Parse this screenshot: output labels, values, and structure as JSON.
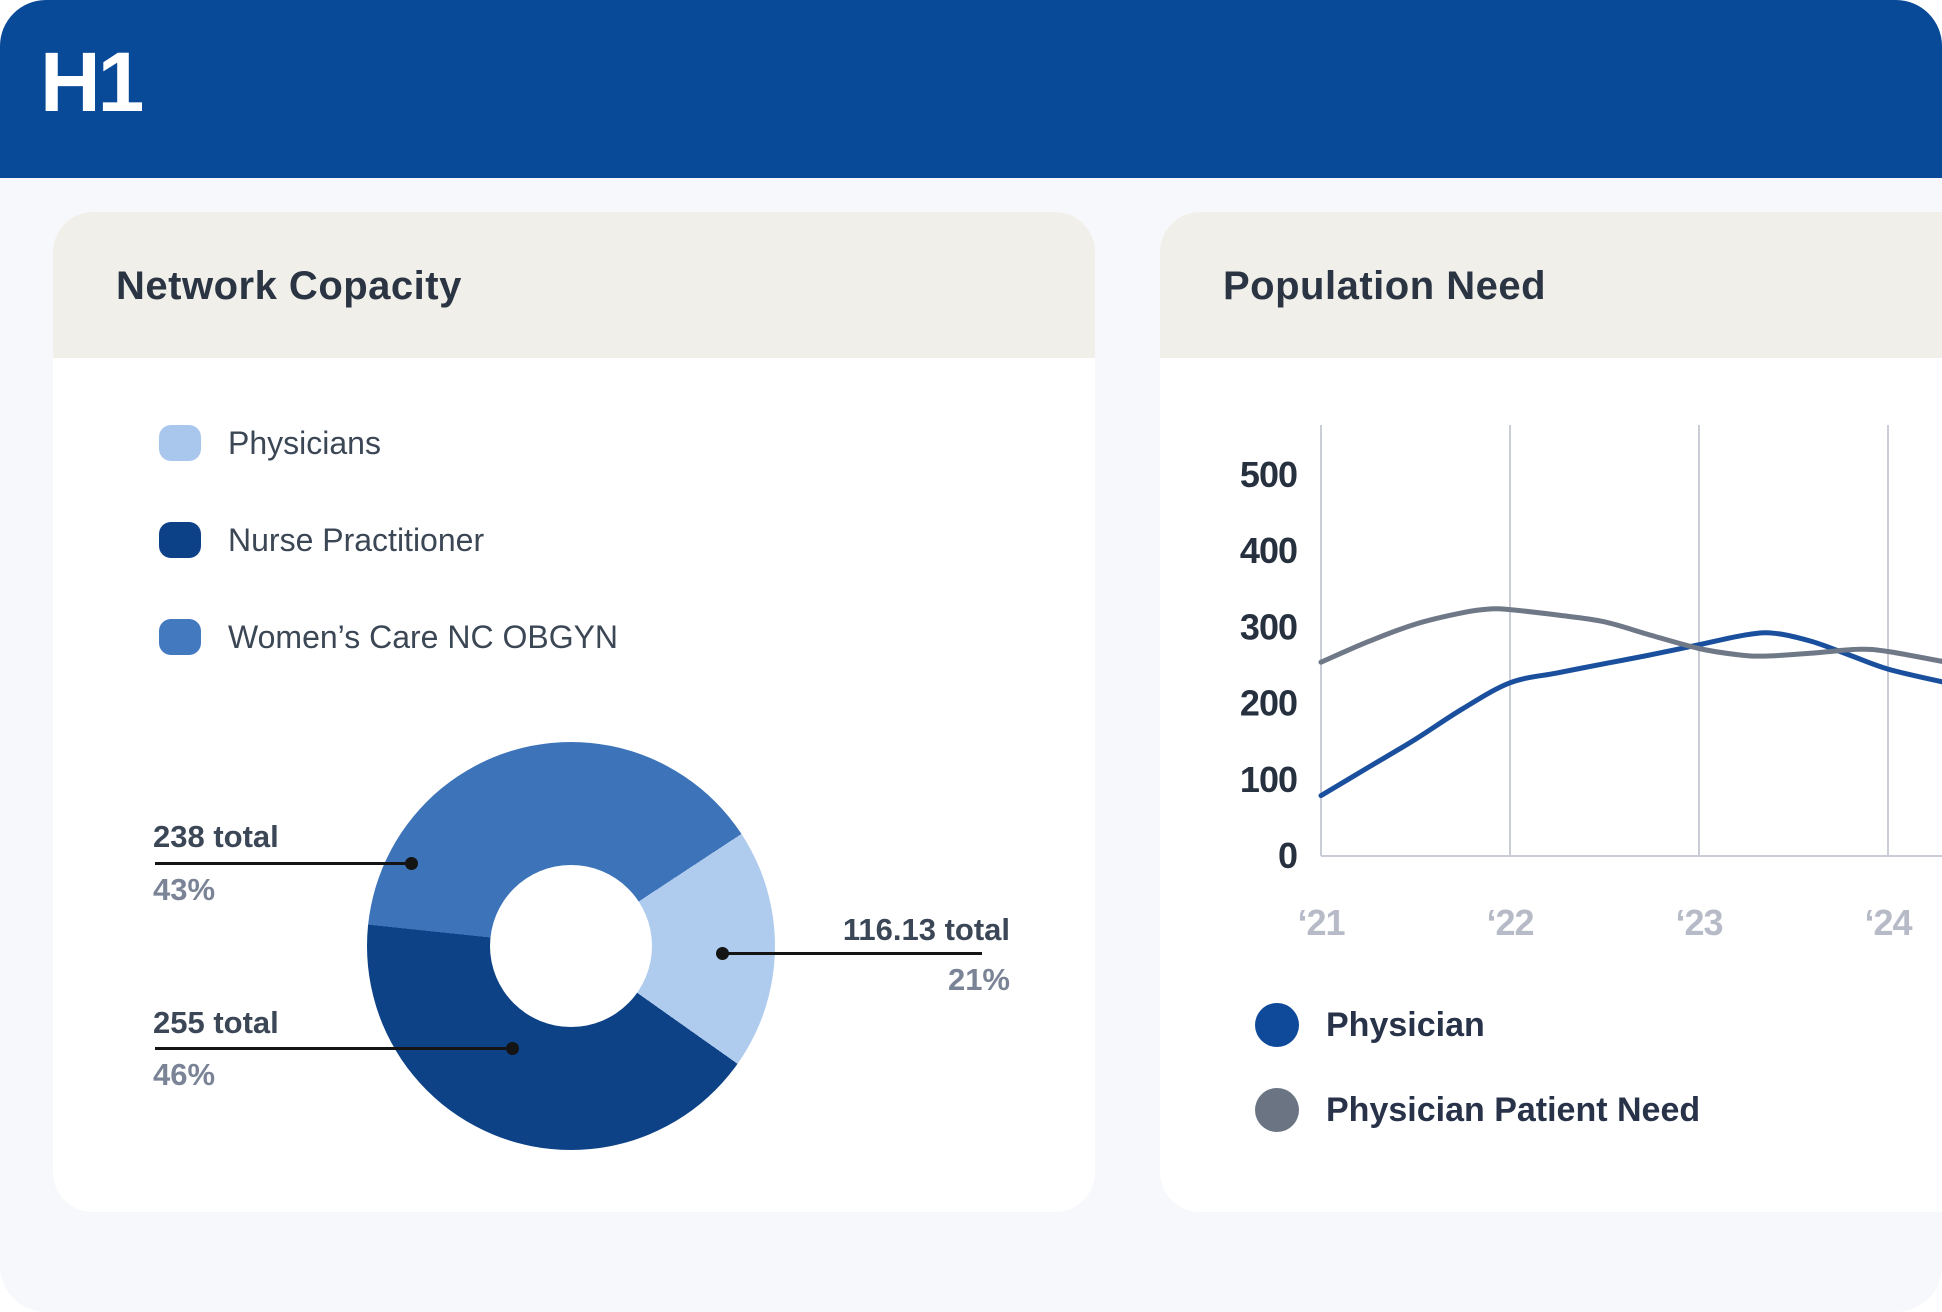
{
  "header": {
    "logo": "H1",
    "bar_color": "#084A98"
  },
  "network_card": {
    "title": "Network Copacity",
    "legend": [
      {
        "label": "Physicians",
        "color": "#A9C7EC"
      },
      {
        "label": "Nurse Practitioner",
        "color": "#0C4087"
      },
      {
        "label": "Women’s Care NC OBGYN",
        "color": "#4379BE"
      }
    ],
    "callouts": [
      {
        "total_label": "238 total",
        "percent_label": "43%"
      },
      {
        "total_label": "255 total",
        "percent_label": "46%"
      },
      {
        "total_label": "116.13 total",
        "percent_label": "21%"
      }
    ]
  },
  "population_card": {
    "title": "Population Need",
    "legend": [
      {
        "label": "Physician",
        "color": "#0E4A99"
      },
      {
        "label": "Physician Patient Need",
        "color": "#6B7483"
      }
    ]
  },
  "chart_data": [
    {
      "type": "pie",
      "title": "Network Copacity",
      "donut": true,
      "start_angle_deg": 276,
      "segments": [
        {
          "label": "Women’s Care NC OBGYN",
          "total": 238,
          "percent": "43%",
          "color": "#3C73B9"
        },
        {
          "label": "Physicians",
          "total": 116.13,
          "percent": "21%",
          "color": "#AFCBEE"
        },
        {
          "label": "Nurse Practitioner",
          "total": 255,
          "percent": "46%",
          "color": "#0D4287"
        }
      ]
    },
    {
      "type": "line",
      "title": "Population Need",
      "x_ticks": [
        "‘21",
        "‘22",
        "‘23",
        "‘24"
      ],
      "y_ticks": [
        500,
        400,
        300,
        200,
        100,
        0
      ],
      "ylim": [
        0,
        560
      ],
      "xlim_years": [
        21,
        24.29
      ],
      "grid": "vertical",
      "legend_position": "bottom",
      "series": [
        {
          "name": "Physician",
          "color": "#1A4F9D",
          "points": [
            [
              21,
              78
            ],
            [
              21.25,
              115
            ],
            [
              21.5,
              152
            ],
            [
              21.75,
              192
            ],
            [
              22,
              226
            ],
            [
              22.25,
              239
            ],
            [
              22.5,
              251
            ],
            [
              22.75,
              263
            ],
            [
              23,
              276
            ],
            [
              23.25,
              289
            ],
            [
              23.4,
              291
            ],
            [
              23.6,
              280
            ],
            [
              23.8,
              262
            ],
            [
              24,
              244
            ],
            [
              24.29,
              227
            ]
          ]
        },
        {
          "name": "Physician Patient Need",
          "color": "#6F7887",
          "points": [
            [
              21,
              253
            ],
            [
              21.25,
              280
            ],
            [
              21.5,
              303
            ],
            [
              21.75,
              318
            ],
            [
              21.9,
              323
            ],
            [
              22,
              322
            ],
            [
              22.25,
              315
            ],
            [
              22.5,
              306
            ],
            [
              22.75,
              288
            ],
            [
              23,
              271
            ],
            [
              23.2,
              263
            ],
            [
              23.35,
              261
            ],
            [
              23.6,
              265
            ],
            [
              23.85,
              270
            ],
            [
              24,
              267
            ],
            [
              24.29,
              254
            ]
          ]
        }
      ]
    }
  ]
}
